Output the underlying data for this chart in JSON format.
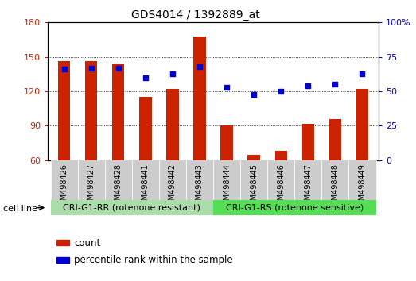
{
  "title": "GDS4014 / 1392889_at",
  "samples": [
    "GSM498426",
    "GSM498427",
    "GSM498428",
    "GSM498441",
    "GSM498442",
    "GSM498443",
    "GSM498444",
    "GSM498445",
    "GSM498446",
    "GSM498447",
    "GSM498448",
    "GSM498449"
  ],
  "counts": [
    146,
    146,
    144,
    115,
    122,
    168,
    90,
    65,
    68,
    92,
    96,
    122
  ],
  "percentile_ranks": [
    66,
    67,
    67,
    60,
    63,
    68,
    53,
    48,
    50,
    54,
    55,
    63
  ],
  "ylim_left": [
    60,
    180
  ],
  "ylim_right": [
    0,
    100
  ],
  "yticks_left": [
    60,
    90,
    120,
    150,
    180
  ],
  "yticks_right": [
    0,
    25,
    50,
    75,
    100
  ],
  "bar_color": "#cc2200",
  "dot_color": "#0000cc",
  "group1_label": "CRI-G1-RR (rotenone resistant)",
  "group2_label": "CRI-G1-RS (rotenone sensitive)",
  "group1_color": "#aaddaa",
  "group2_color": "#55dd55",
  "n_group1": 6,
  "n_group2": 6,
  "legend_count_label": "count",
  "legend_percentile_label": "percentile rank within the sample",
  "cell_line_label": "cell line",
  "tick_bg_color": "#cccccc",
  "bar_width": 0.45
}
